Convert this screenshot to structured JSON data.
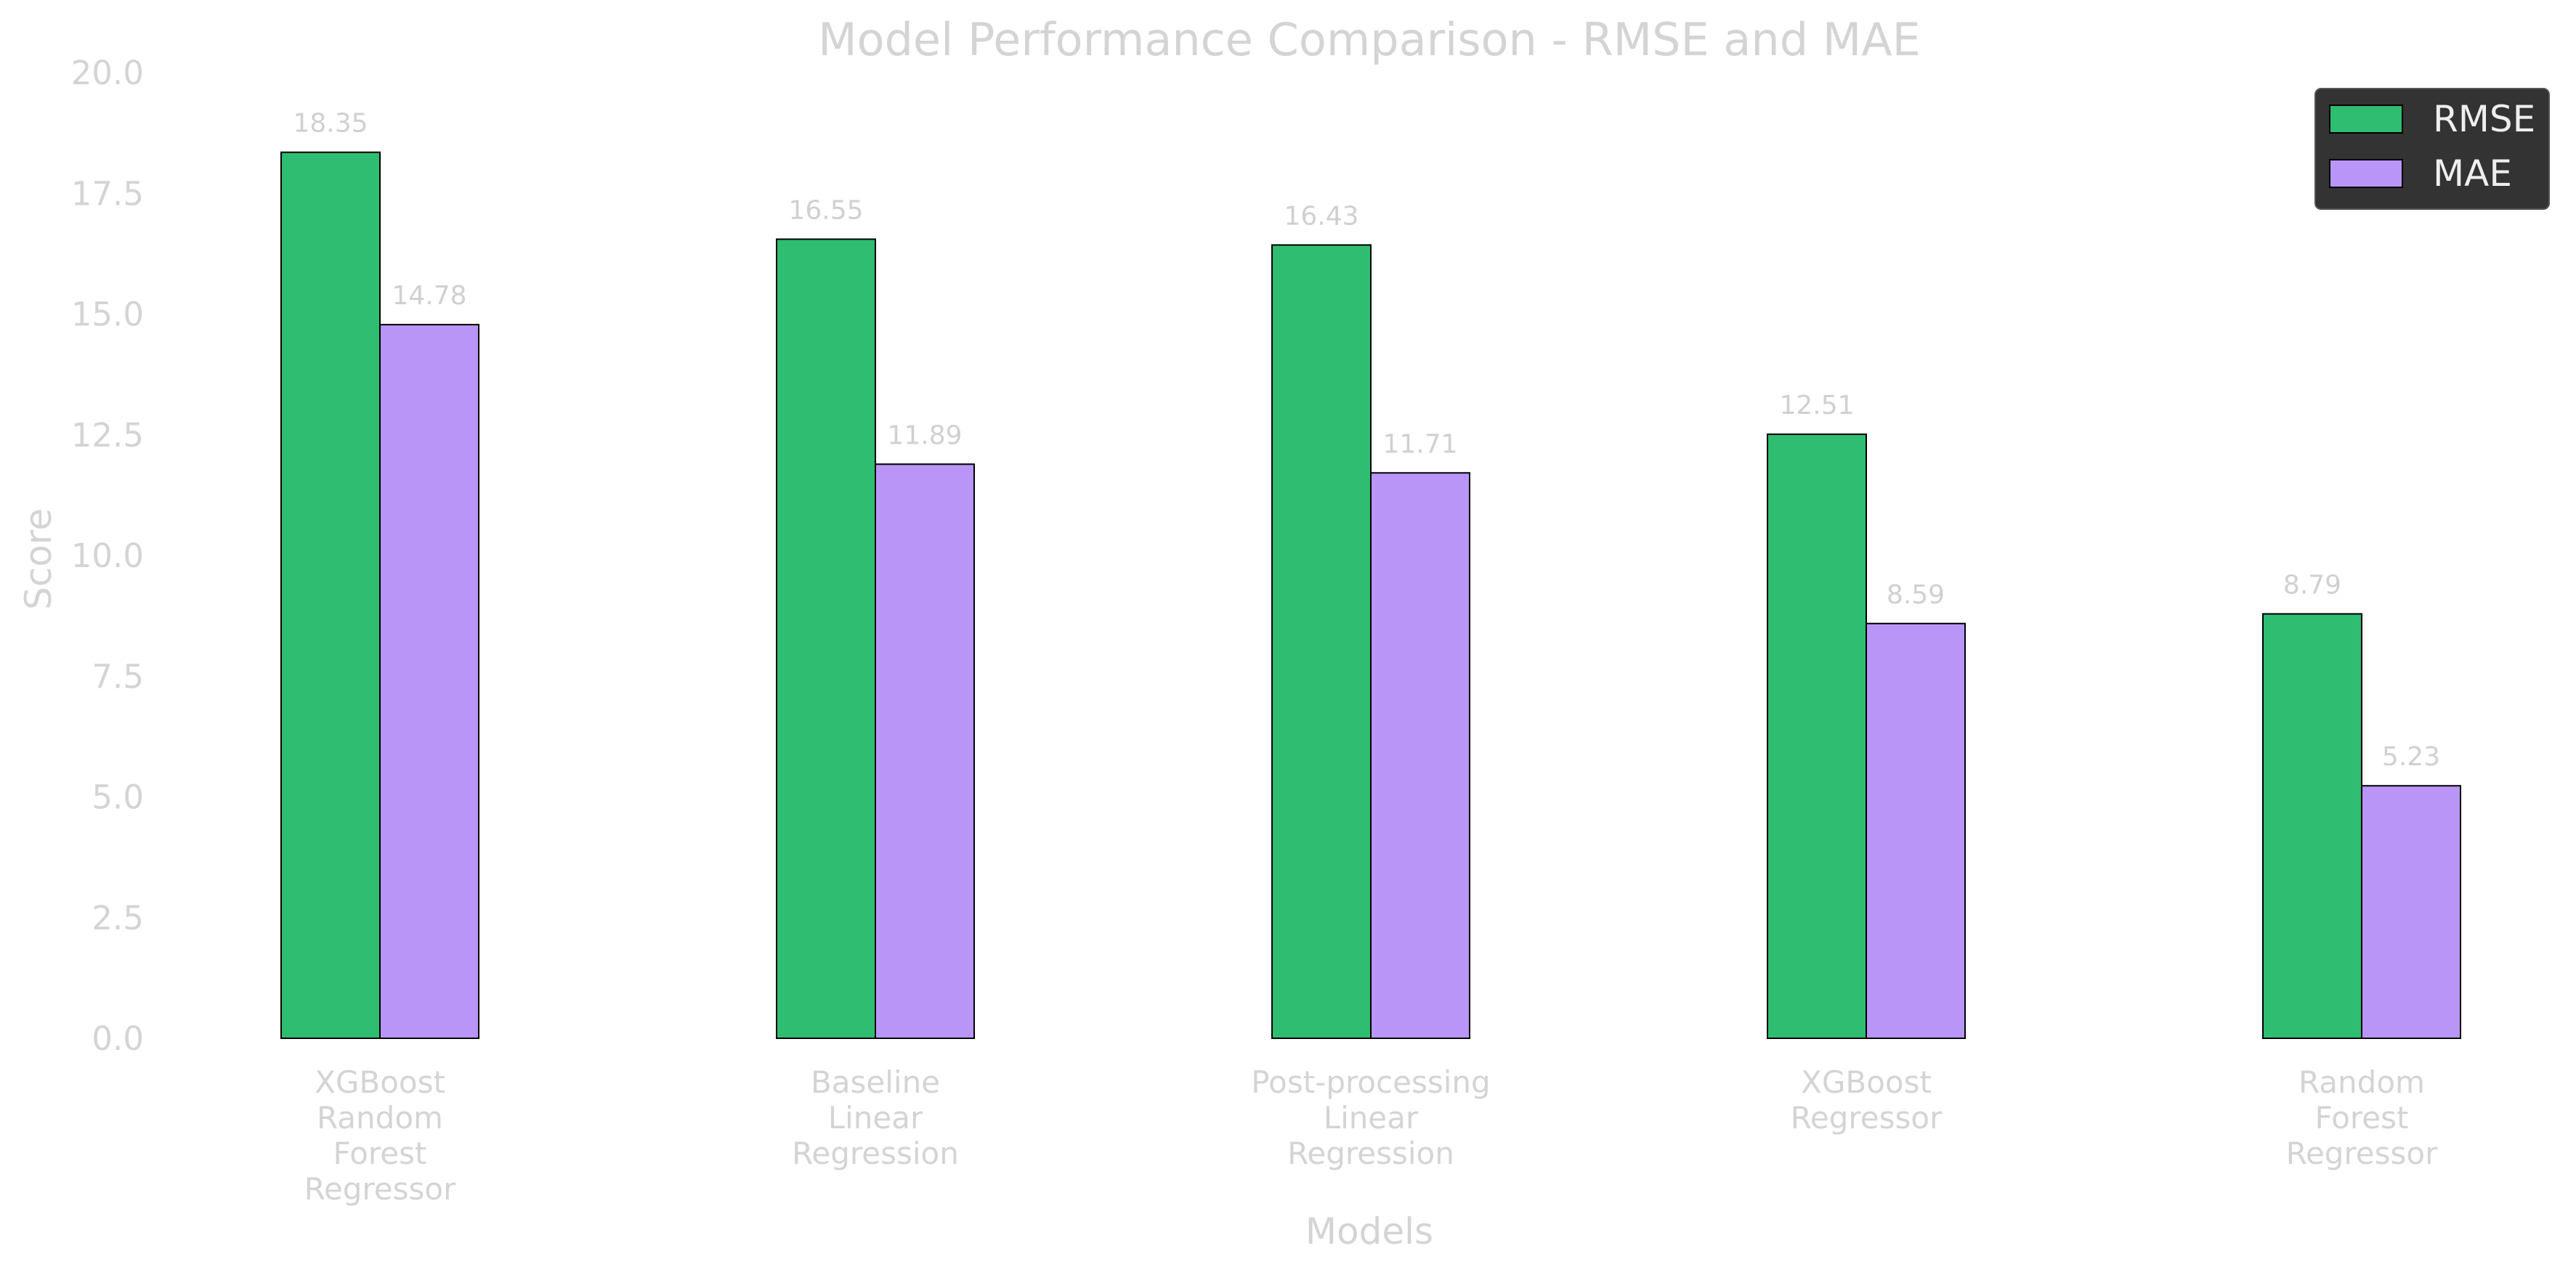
{
  "chart_data": {
    "type": "bar",
    "title": "Model Performance Comparison - RMSE and MAE",
    "xlabel": "Models",
    "ylabel": "Score",
    "ylim": [
      0,
      20
    ],
    "yticks": [
      "0.0",
      "2.5",
      "5.0",
      "7.5",
      "10.0",
      "12.5",
      "15.0",
      "17.5",
      "20.0"
    ],
    "categories": [
      [
        "XGBoost",
        "Random",
        "Forest",
        "Regressor"
      ],
      [
        "Baseline",
        "Linear",
        "Regression"
      ],
      [
        "Post-processing",
        "Linear",
        "Regression"
      ],
      [
        "XGBoost",
        "Regressor"
      ],
      [
        "Random",
        "Forest",
        "Regressor"
      ]
    ],
    "series": [
      {
        "name": "RMSE",
        "color": "#2ebd71",
        "values": [
          18.35,
          16.55,
          16.43,
          12.51,
          8.79
        ],
        "labels": [
          "18.35",
          "16.55",
          "16.43",
          "12.51",
          "8.79"
        ]
      },
      {
        "name": "MAE",
        "color": "#b995f7",
        "values": [
          14.78,
          11.89,
          11.71,
          8.59,
          5.23
        ],
        "labels": [
          "14.78",
          "11.89",
          "11.71",
          "8.59",
          "5.23"
        ]
      }
    ],
    "grid": false,
    "legend": "top-right",
    "legend_bg": "#333333"
  }
}
